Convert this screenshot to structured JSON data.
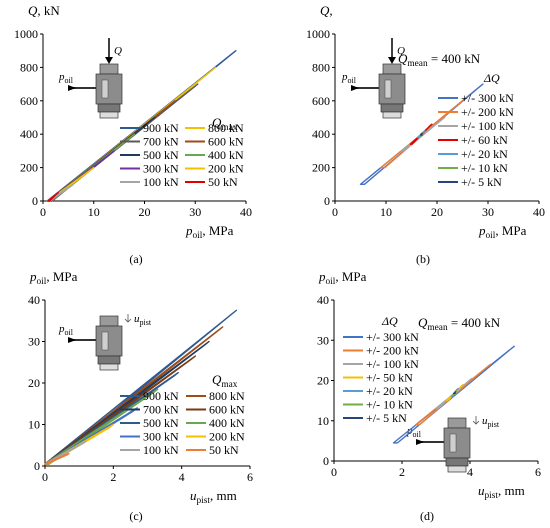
{
  "chart_data": [
    {
      "type": "line",
      "panel": "(a)",
      "ylabel_main": "Q",
      "ylabel_unit": ", kN",
      "xlabel_main": "p",
      "xlabel_sub": "oil",
      "xlabel_unit": ", MPa",
      "xlim": [
        0,
        40
      ],
      "ylim": [
        0,
        1000
      ],
      "xticks": [
        "0",
        "10",
        "20",
        "30",
        "40"
      ],
      "yticks": [
        "0",
        "200",
        "400",
        "600",
        "800",
        "1000"
      ],
      "inset": {
        "force_label": "Q",
        "pressure_label_main": "p",
        "pressure_label_sub": "oil"
      },
      "legend_title_main": "Q",
      "legend_title_sub": "max",
      "series": [
        {
          "name": "900 kN",
          "color": "#2e5a91",
          "x": [
            0.8,
            38
          ],
          "y": [
            0,
            900
          ]
        },
        {
          "name": "800 kN",
          "color": "#f5c000",
          "x": [
            1,
            34
          ],
          "y": [
            0,
            800
          ]
        },
        {
          "name": "700 kN",
          "color": "#5a5a5a",
          "x": [
            1,
            30.5
          ],
          "y": [
            0,
            700
          ]
        },
        {
          "name": "600 kN",
          "color": "#9e4b14",
          "x": [
            1,
            26
          ],
          "y": [
            0,
            600
          ]
        },
        {
          "name": "500 kN",
          "color": "#1f3a5f",
          "x": [
            1,
            22
          ],
          "y": [
            0,
            500
          ]
        },
        {
          "name": "400 kN",
          "color": "#6aa84f",
          "x": [
            1,
            18
          ],
          "y": [
            0,
            400
          ]
        },
        {
          "name": "300 kN",
          "color": "#7030a0",
          "x": [
            1,
            14
          ],
          "y": [
            0,
            300
          ]
        },
        {
          "name": "200 kN",
          "color": "#f5c000",
          "x": [
            1,
            10
          ],
          "y": [
            0,
            200
          ]
        },
        {
          "name": "100 kN",
          "color": "#a5a5a5",
          "x": [
            1,
            6
          ],
          "y": [
            0,
            100
          ]
        },
        {
          "name": "50 kN",
          "color": "#e00000",
          "x": [
            1,
            3
          ],
          "y": [
            0,
            50
          ]
        }
      ]
    },
    {
      "type": "line",
      "panel": "(b)",
      "ylabel_main": "Q",
      "ylabel_unit": ",",
      "xlabel_main": "p",
      "xlabel_sub": "oil",
      "xlabel_unit": ", MPa",
      "annotation_main": "Q",
      "annotation_sub": "mean",
      "annotation_rest": " = 400 kN",
      "xlim": [
        0,
        40
      ],
      "ylim": [
        0,
        1000
      ],
      "xticks": [
        "0",
        "10",
        "20",
        "30",
        "40"
      ],
      "yticks": [
        "0",
        "200",
        "400",
        "600",
        "800",
        "1000"
      ],
      "inset": {
        "force_label": "Q",
        "pressure_label_main": "p",
        "pressure_label_sub": "oil"
      },
      "legend_title": "ΔQ",
      "series": [
        {
          "name": "+/- 300 kN",
          "color": "#4472c4",
          "x": [
            5,
            29
          ],
          "y": [
            100,
            700
          ]
        },
        {
          "name": "+/- 200 kN",
          "color": "#ed7d31",
          "x": [
            9,
            25
          ],
          "y": [
            200,
            600
          ]
        },
        {
          "name": "+/- 100 kN",
          "color": "#a5a5a5",
          "x": [
            13,
            21.5
          ],
          "y": [
            300,
            500
          ]
        },
        {
          "name": "+/- 60 kN",
          "color": "#e00000",
          "x": [
            14.8,
            19
          ],
          "y": [
            340,
            460
          ]
        },
        {
          "name": "+/- 20 kN",
          "color": "#5b9bd5",
          "x": [
            16.2,
            17.6
          ],
          "y": [
            380,
            420
          ]
        },
        {
          "name": "+/- 10 kN",
          "color": "#70ad47",
          "x": [
            16.6,
            17.2
          ],
          "y": [
            390,
            410
          ]
        },
        {
          "name": "+/- 5 kN",
          "color": "#264478",
          "x": [
            16.8,
            17.1
          ],
          "y": [
            395,
            405
          ]
        }
      ]
    },
    {
      "type": "line",
      "panel": "(c)",
      "ylabel_main": "p",
      "ylabel_sub": "oil",
      "ylabel_unit": ", MPa",
      "xlabel_main": "u",
      "xlabel_sub": "pist",
      "xlabel_unit": ", mm",
      "xlim": [
        0,
        6
      ],
      "ylim": [
        0,
        40
      ],
      "xticks": [
        "0",
        "2",
        "4",
        "6"
      ],
      "yticks": [
        "0",
        "10",
        "20",
        "30",
        "40"
      ],
      "inset": {
        "displacement_label_main": "u",
        "displacement_label_sub": "pist",
        "pressure_label_main": "p",
        "pressure_label_sub": "oil"
      },
      "legend_title_main": "Q",
      "legend_title_sub": "max",
      "series": [
        {
          "name": "900 kN",
          "color": "#2e5a91",
          "x": [
            0,
            5.6
          ],
          "y": [
            0.5,
            37.5
          ]
        },
        {
          "name": "800 kN",
          "color": "#9e4b14",
          "x": [
            0,
            5.2
          ],
          "y": [
            0.5,
            33.5
          ]
        },
        {
          "name": "700 kN",
          "color": "#1f3a5f",
          "x": [
            0,
            4.8
          ],
          "y": [
            0.5,
            30
          ]
        },
        {
          "name": "600 kN",
          "color": "#7a3a10",
          "x": [
            0,
            4.4
          ],
          "y": [
            0.5,
            26.5
          ]
        },
        {
          "name": "500 kN",
          "color": "#2e5a91",
          "x": [
            0,
            3.9
          ],
          "y": [
            0.5,
            22.5
          ]
        },
        {
          "name": "400 kN",
          "color": "#6aa84f",
          "x": [
            0,
            3.3
          ],
          "y": [
            0.5,
            18.5
          ]
        },
        {
          "name": "300 kN",
          "color": "#4472c4",
          "x": [
            0,
            2.7
          ],
          "y": [
            0.5,
            14
          ]
        },
        {
          "name": "200 kN",
          "color": "#f5c000",
          "x": [
            0,
            2.0
          ],
          "y": [
            0.5,
            10
          ]
        },
        {
          "name": "100 kN",
          "color": "#a5a5a5",
          "x": [
            0,
            1.2
          ],
          "y": [
            0.5,
            6
          ]
        },
        {
          "name": "50 kN",
          "color": "#ed7d31",
          "x": [
            0,
            0.7
          ],
          "y": [
            0.5,
            3
          ]
        }
      ]
    },
    {
      "type": "line",
      "panel": "(d)",
      "ylabel_main": "p",
      "ylabel_sub": "oil",
      "ylabel_unit": ", MPa",
      "xlabel_main": "u",
      "xlabel_sub": "pist",
      "xlabel_unit": ", mm",
      "annotation_main": "Q",
      "annotation_sub": "mean",
      "annotation_rest": " = 400 kN",
      "xlim": [
        0,
        6
      ],
      "ylim": [
        0,
        40
      ],
      "xticks": [
        "0",
        "2",
        "4",
        "6"
      ],
      "yticks": [
        "0",
        "10",
        "20",
        "30",
        "40"
      ],
      "inset": {
        "displacement_label_main": "u",
        "displacement_label_sub": "pist",
        "pressure_label_main": "p",
        "pressure_label_sub": "oil"
      },
      "legend_title": "ΔQ",
      "series": [
        {
          "name": "+/- 300 kN",
          "color": "#4472c4",
          "x": [
            1.75,
            5.3
          ],
          "y": [
            4.5,
            28.5
          ]
        },
        {
          "name": "+/- 200 kN",
          "color": "#ed7d31",
          "x": [
            2.4,
            4.6
          ],
          "y": [
            9,
            24
          ]
        },
        {
          "name": "+/- 100 kN",
          "color": "#a5a5a5",
          "x": [
            3.0,
            4.05
          ],
          "y": [
            13,
            20.5
          ]
        },
        {
          "name": "+/- 50 kN",
          "color": "#f5c000",
          "x": [
            3.3,
            3.8
          ],
          "y": [
            15,
            19
          ]
        },
        {
          "name": "+/- 20 kN",
          "color": "#5b9bd5",
          "x": [
            3.45,
            3.65
          ],
          "y": [
            16,
            18
          ]
        },
        {
          "name": "+/- 10 kN",
          "color": "#70ad47",
          "x": [
            3.5,
            3.6
          ],
          "y": [
            16.5,
            17.5
          ]
        },
        {
          "name": "+/- 5 kN",
          "color": "#264478",
          "x": [
            3.52,
            3.58
          ],
          "y": [
            16.8,
            17.2
          ]
        }
      ]
    }
  ]
}
